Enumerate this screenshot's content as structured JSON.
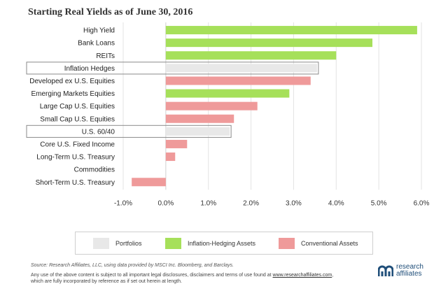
{
  "chart_data": {
    "type": "bar",
    "orientation": "horizontal",
    "title": "Starting Real Yields as of June 30, 2016",
    "categories": [
      "High Yield",
      "Bank Loans",
      "REITs",
      "Inflation Hedges",
      "Developed ex U.S. Equities",
      "Emerging Markets Equities",
      "Large Cap U.S. Equities",
      "Small Cap U.S. Equities",
      "U.S. 60/40",
      "Core U.S. Fixed Income",
      "Long-Term U.S. Treasury",
      "Commodities",
      "Short-Term U.S. Treasury"
    ],
    "values": [
      5.9,
      4.85,
      4.0,
      3.55,
      3.4,
      2.9,
      2.15,
      1.6,
      1.5,
      0.5,
      0.22,
      0.0,
      -0.8
    ],
    "groups": [
      "Inflation-Hedging Assets",
      "Inflation-Hedging Assets",
      "Inflation-Hedging Assets",
      "Portfolios",
      "Conventional Assets",
      "Inflation-Hedging Assets",
      "Conventional Assets",
      "Conventional Assets",
      "Portfolios",
      "Conventional Assets",
      "Conventional Assets",
      "Inflation-Hedging Assets",
      "Conventional Assets"
    ],
    "xlim": [
      -1.0,
      6.0
    ],
    "xticks": [
      "-1.0%",
      "0.0%",
      "1.0%",
      "2.0%",
      "3.0%",
      "4.0%",
      "5.0%",
      "6.0%"
    ],
    "grid": true,
    "legend_position": "bottom"
  },
  "legend": [
    {
      "label": "Portfolios",
      "color": "#e8e8e8"
    },
    {
      "label": "Inflation-Hedging Assets",
      "color": "#a6e05a"
    },
    {
      "label": "Conventional Assets",
      "color": "#ef9a9a"
    }
  ],
  "footer": {
    "source": "Source: Research Affiliates, LLC, using data provided by MSCI Inc. Bloomberg, and Barclays.",
    "disclaimer_pre": "Any use of the above content is subject to all important legal disclosures, disclaimers and terms of use found at ",
    "disclaimer_link": "www.researchaffiliates.com",
    "disclaimer_post": ",",
    "disclaimer_line2": "which are fully incorporated by reference as if set out herein at length."
  },
  "logo": {
    "line1": "research",
    "line2": "affiliates"
  }
}
